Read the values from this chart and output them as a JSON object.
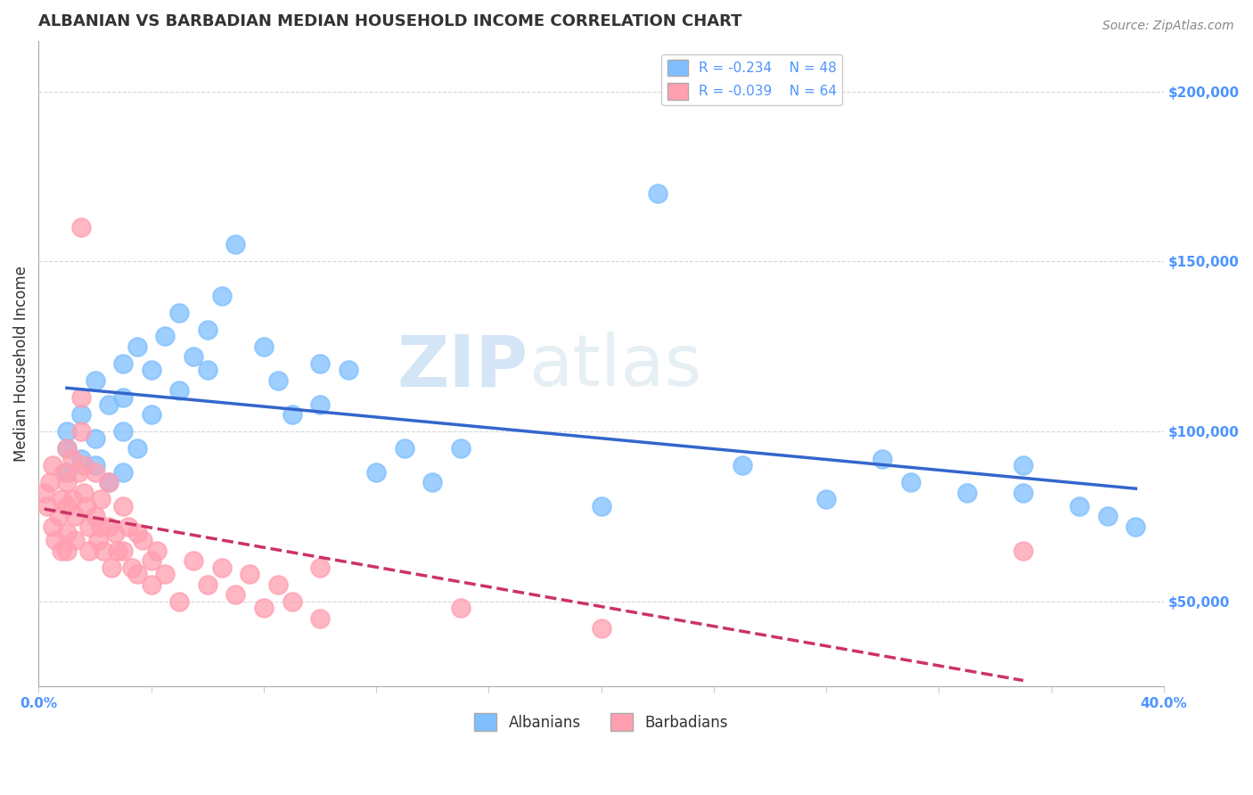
{
  "title": "ALBANIAN VS BARBADIAN MEDIAN HOUSEHOLD INCOME CORRELATION CHART",
  "source": "Source: ZipAtlas.com",
  "ylabel": "Median Household Income",
  "xlim": [
    0.0,
    0.4
  ],
  "ylim": [
    25000,
    215000
  ],
  "yticks": [
    50000,
    100000,
    150000,
    200000
  ],
  "ytick_labels": [
    "$50,000",
    "$100,000",
    "$150,000",
    "$200,000"
  ],
  "xticks": [
    0.0,
    0.04,
    0.08,
    0.12,
    0.16,
    0.2,
    0.24,
    0.28,
    0.32,
    0.36,
    0.4
  ],
  "background_color": "#ffffff",
  "watermark_zip": "ZIP",
  "watermark_atlas": "atlas",
  "legend_r_albanians": "R = -0.234",
  "legend_n_albanians": "N = 48",
  "legend_r_barbadians": "R = -0.039",
  "legend_n_barbadians": "N = 64",
  "albanians_color": "#7fbfff",
  "barbadians_color": "#ff9fb0",
  "albanians_line_color": "#3366cc",
  "barbadians_line_color": "#cc3366",
  "albanians_x": [
    0.01,
    0.01,
    0.01,
    0.015,
    0.015,
    0.02,
    0.02,
    0.02,
    0.025,
    0.025,
    0.03,
    0.03,
    0.03,
    0.03,
    0.035,
    0.035,
    0.04,
    0.04,
    0.045,
    0.05,
    0.05,
    0.055,
    0.06,
    0.06,
    0.065,
    0.07,
    0.08,
    0.085,
    0.09,
    0.1,
    0.1,
    0.11,
    0.12,
    0.13,
    0.14,
    0.15,
    0.2,
    0.22,
    0.25,
    0.28,
    0.3,
    0.31,
    0.33,
    0.35,
    0.35,
    0.37,
    0.38,
    0.39
  ],
  "albanians_y": [
    100000,
    95000,
    88000,
    105000,
    92000,
    115000,
    98000,
    90000,
    108000,
    85000,
    120000,
    110000,
    100000,
    88000,
    125000,
    95000,
    118000,
    105000,
    128000,
    135000,
    112000,
    122000,
    130000,
    118000,
    140000,
    155000,
    125000,
    115000,
    105000,
    120000,
    108000,
    118000,
    88000,
    95000,
    85000,
    95000,
    78000,
    170000,
    90000,
    80000,
    92000,
    85000,
    82000,
    90000,
    82000,
    78000,
    75000,
    72000
  ],
  "barbadians_x": [
    0.002,
    0.003,
    0.004,
    0.005,
    0.005,
    0.006,
    0.007,
    0.008,
    0.008,
    0.009,
    0.01,
    0.01,
    0.01,
    0.01,
    0.01,
    0.012,
    0.012,
    0.013,
    0.013,
    0.014,
    0.015,
    0.015,
    0.015,
    0.016,
    0.016,
    0.017,
    0.018,
    0.018,
    0.02,
    0.02,
    0.021,
    0.022,
    0.022,
    0.023,
    0.025,
    0.025,
    0.026,
    0.027,
    0.028,
    0.03,
    0.03,
    0.032,
    0.033,
    0.035,
    0.035,
    0.037,
    0.04,
    0.04,
    0.042,
    0.045,
    0.05,
    0.055,
    0.06,
    0.065,
    0.07,
    0.075,
    0.08,
    0.085,
    0.09,
    0.1,
    0.1,
    0.15,
    0.2,
    0.35
  ],
  "barbadians_y": [
    82000,
    78000,
    85000,
    72000,
    90000,
    68000,
    75000,
    80000,
    65000,
    88000,
    95000,
    85000,
    78000,
    70000,
    65000,
    92000,
    80000,
    75000,
    68000,
    88000,
    160000,
    110000,
    100000,
    90000,
    82000,
    78000,
    72000,
    65000,
    88000,
    75000,
    68000,
    80000,
    72000,
    65000,
    85000,
    72000,
    60000,
    70000,
    65000,
    78000,
    65000,
    72000,
    60000,
    70000,
    58000,
    68000,
    62000,
    55000,
    65000,
    58000,
    50000,
    62000,
    55000,
    60000,
    52000,
    58000,
    48000,
    55000,
    50000,
    60000,
    45000,
    48000,
    42000,
    65000
  ]
}
